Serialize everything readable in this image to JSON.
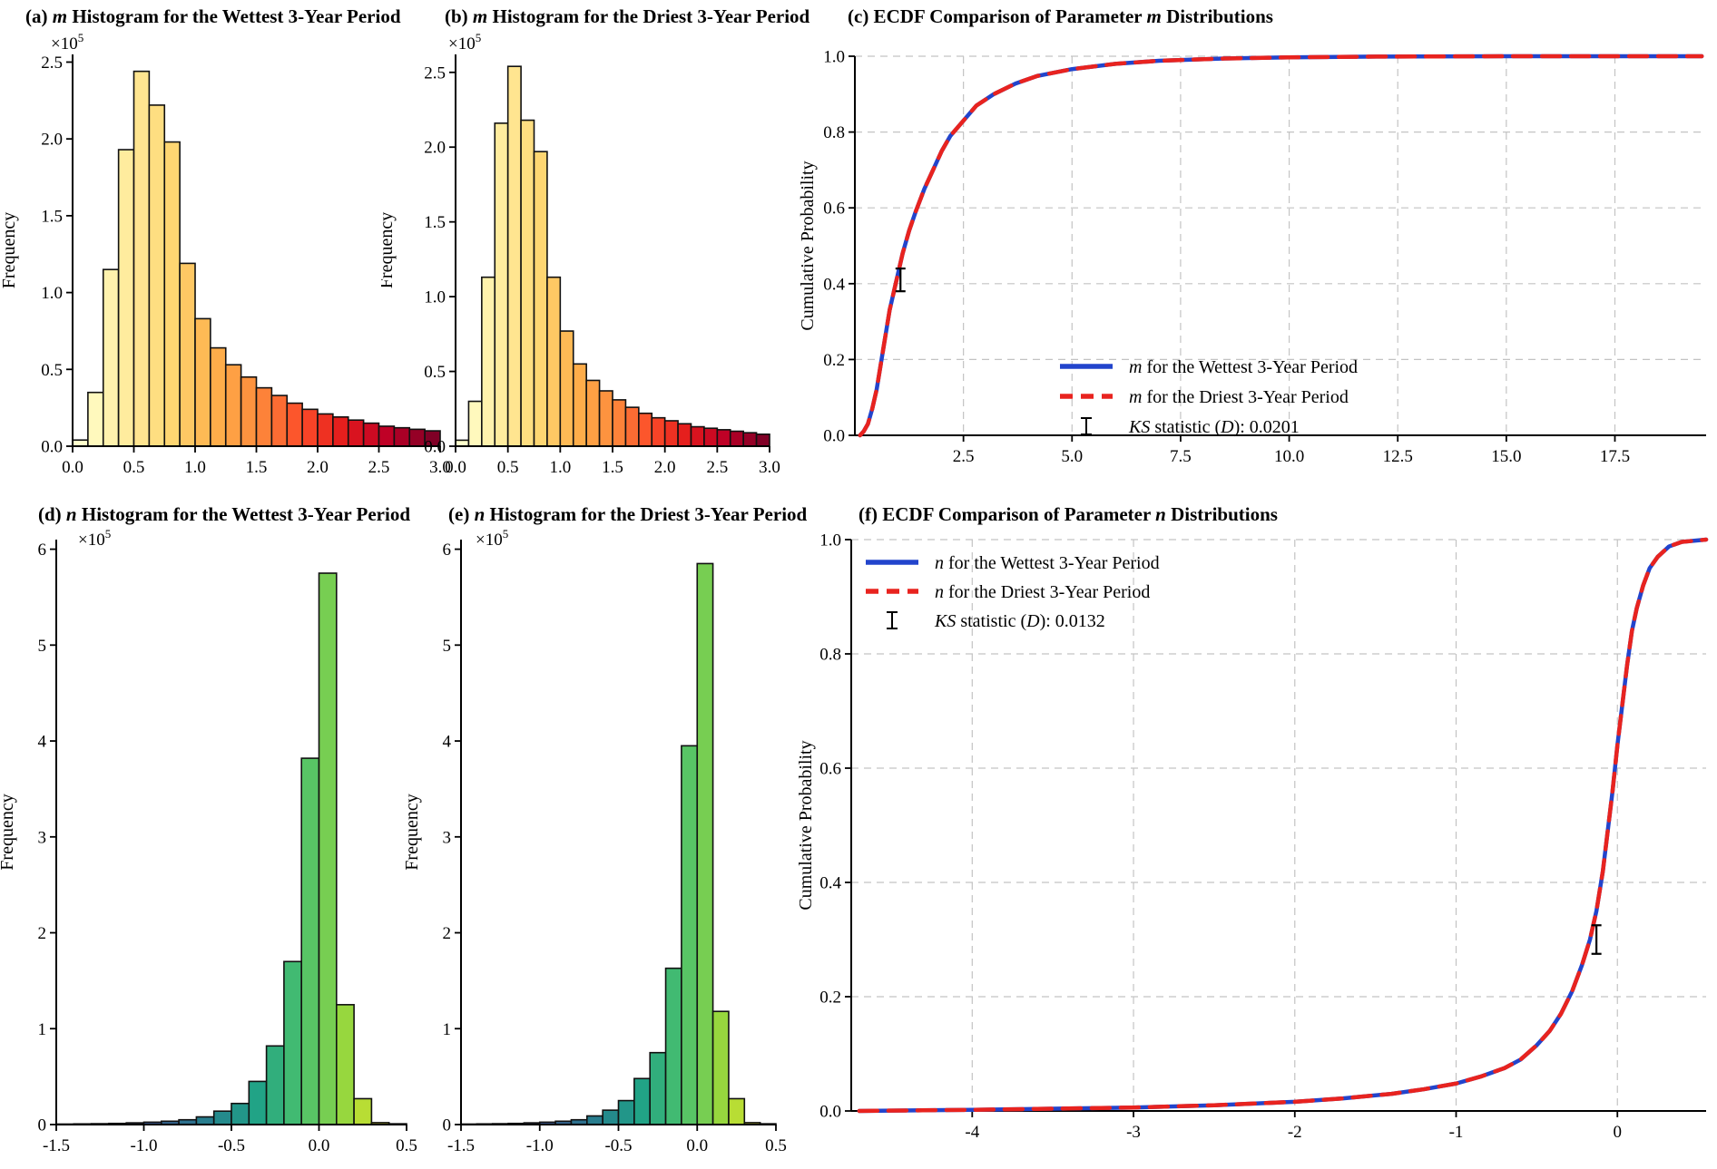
{
  "figure": {
    "background": "#ffffff"
  },
  "colors": {
    "wettest_line": "#2244cc",
    "driest_line": "#e8231f",
    "grid": "#c3c3c3",
    "bar_edge": "#111111",
    "axis": "#000000"
  },
  "chart_data": [
    {
      "id": "a",
      "type": "bar",
      "title": "(a) m Histogram for the Wettest 3-Year Period",
      "title_parts": {
        "pre": "(a)",
        "var": "m",
        "post": " Histogram for the Wettest 3-Year Period"
      },
      "xlabel": "",
      "ylabel": "Frequency",
      "y_offset": {
        "base": "×10",
        "exp": "5"
      },
      "bin_start": 0.0,
      "bin_width": 0.125,
      "values_x1e5": [
        0.04,
        0.35,
        1.15,
        1.93,
        2.44,
        2.22,
        1.98,
        1.19,
        0.83,
        0.64,
        0.53,
        0.45,
        0.38,
        0.33,
        0.28,
        0.24,
        0.21,
        0.19,
        0.17,
        0.15,
        0.13,
        0.12,
        0.11,
        0.1
      ],
      "xlim": [
        0.0,
        3.0
      ],
      "ylim": [
        0.0,
        2.55
      ],
      "xtick_vals": [
        0.0,
        0.5,
        1.0,
        1.5,
        2.0,
        2.5,
        3.0
      ],
      "xtick_labels": [
        "0.0",
        "0.5",
        "1.0",
        "1.5",
        "2.0",
        "2.5",
        "3.0"
      ],
      "ytick_vals": [
        0.0,
        0.5,
        1.0,
        1.5,
        2.0,
        2.5
      ],
      "ytick_labels": [
        "0.0",
        "0.5",
        "1.0",
        "1.5",
        "2.0",
        "2.5"
      ],
      "grid": false,
      "colormap": [
        "#ffffcc",
        "#ffeda0",
        "#fed976",
        "#feb24c",
        "#fd8d3c",
        "#fc4e2a",
        "#e31a1c",
        "#bd0026",
        "#800026"
      ]
    },
    {
      "id": "b",
      "type": "bar",
      "title": "(b) m Histogram for the Driest 3-Year Period",
      "title_parts": {
        "pre": "(b)",
        "var": "m",
        "post": " Histogram for the Driest 3-Year Period"
      },
      "xlabel": "",
      "ylabel": "Frequency",
      "y_offset": {
        "base": "×10",
        "exp": "5"
      },
      "bin_start": 0.0,
      "bin_width": 0.125,
      "values_x1e5": [
        0.04,
        0.3,
        1.13,
        2.16,
        2.54,
        2.18,
        1.97,
        1.13,
        0.77,
        0.55,
        0.44,
        0.37,
        0.31,
        0.26,
        0.22,
        0.19,
        0.17,
        0.15,
        0.13,
        0.12,
        0.11,
        0.1,
        0.09,
        0.08
      ],
      "xlim": [
        0.0,
        3.0
      ],
      "ylim": [
        0.0,
        2.62
      ],
      "xtick_vals": [
        0.0,
        0.5,
        1.0,
        1.5,
        2.0,
        2.5,
        3.0
      ],
      "xtick_labels": [
        "0.0",
        "0.5",
        "1.0",
        "1.5",
        "2.0",
        "2.5",
        "3.0"
      ],
      "ytick_vals": [
        0.0,
        0.5,
        1.0,
        1.5,
        2.0,
        2.5
      ],
      "ytick_labels": [
        "0.0",
        "0.5",
        "1.0",
        "1.5",
        "2.0",
        "2.5"
      ],
      "grid": false,
      "colormap": [
        "#ffffcc",
        "#ffeda0",
        "#fed976",
        "#feb24c",
        "#fd8d3c",
        "#fc4e2a",
        "#e31a1c",
        "#bd0026",
        "#800026"
      ]
    },
    {
      "id": "c",
      "type": "line",
      "title": "(c) ECDF Comparison of Parameter m Distributions",
      "title_parts": {
        "pre": "(c) ECDF Comparison of Parameter",
        "var": "m",
        "post": " Distributions"
      },
      "xlabel": "",
      "ylabel": "Cumulative Probability",
      "xlim": [
        0.0,
        19.6
      ],
      "ylim": [
        0.0,
        1.0
      ],
      "xtick_vals": [
        2.5,
        5.0,
        7.5,
        10.0,
        12.5,
        15.0,
        17.5
      ],
      "xtick_labels": [
        "2.5",
        "5.0",
        "7.5",
        "10.0",
        "12.5",
        "15.0",
        "17.5"
      ],
      "ytick_vals": [
        0.0,
        0.2,
        0.4,
        0.6,
        0.8,
        1.0
      ],
      "ytick_labels": [
        "0.0",
        "0.2",
        "0.4",
        "0.6",
        "0.8",
        "1.0"
      ],
      "grid": true,
      "legend_position": "lower right",
      "ks_statistic": 0.0201,
      "ks_marker": {
        "x": 1.05,
        "y": 0.41,
        "half": 0.03
      },
      "series": [
        {
          "name": "m for the Wettest 3-Year Period",
          "color": "#2244cc",
          "dash": false,
          "points": [
            [
              0.12,
              0.0
            ],
            [
              0.2,
              0.01
            ],
            [
              0.3,
              0.03
            ],
            [
              0.4,
              0.07
            ],
            [
              0.5,
              0.12
            ],
            [
              0.6,
              0.19
            ],
            [
              0.7,
              0.26
            ],
            [
              0.8,
              0.33
            ],
            [
              0.9,
              0.38
            ],
            [
              1.0,
              0.43
            ],
            [
              1.1,
              0.48
            ],
            [
              1.25,
              0.54
            ],
            [
              1.4,
              0.59
            ],
            [
              1.6,
              0.65
            ],
            [
              1.8,
              0.7
            ],
            [
              2.0,
              0.75
            ],
            [
              2.2,
              0.79
            ],
            [
              2.5,
              0.83
            ],
            [
              2.8,
              0.87
            ],
            [
              3.2,
              0.9
            ],
            [
              3.7,
              0.928
            ],
            [
              4.2,
              0.948
            ],
            [
              5.0,
              0.966
            ],
            [
              6.0,
              0.98
            ],
            [
              7.0,
              0.988
            ],
            [
              8.5,
              0.994
            ],
            [
              10.0,
              0.997
            ],
            [
              12.0,
              0.999
            ],
            [
              15.0,
              1.0
            ],
            [
              19.5,
              1.0
            ]
          ]
        },
        {
          "name": "m for the Driest 3-Year Period",
          "color": "#e8231f",
          "dash": true,
          "points": [
            [
              0.12,
              0.0
            ],
            [
              0.2,
              0.01
            ],
            [
              0.3,
              0.03
            ],
            [
              0.4,
              0.07
            ],
            [
              0.5,
              0.12
            ],
            [
              0.6,
              0.19
            ],
            [
              0.7,
              0.26
            ],
            [
              0.8,
              0.33
            ],
            [
              0.9,
              0.38
            ],
            [
              1.0,
              0.43
            ],
            [
              1.1,
              0.48
            ],
            [
              1.25,
              0.54
            ],
            [
              1.4,
              0.59
            ],
            [
              1.6,
              0.65
            ],
            [
              1.8,
              0.7
            ],
            [
              2.0,
              0.75
            ],
            [
              2.2,
              0.79
            ],
            [
              2.5,
              0.83
            ],
            [
              2.8,
              0.87
            ],
            [
              3.2,
              0.9
            ],
            [
              3.7,
              0.928
            ],
            [
              4.2,
              0.948
            ],
            [
              5.0,
              0.966
            ],
            [
              6.0,
              0.98
            ],
            [
              7.0,
              0.988
            ],
            [
              8.5,
              0.994
            ],
            [
              10.0,
              0.997
            ],
            [
              12.0,
              0.999
            ],
            [
              15.0,
              1.0
            ],
            [
              19.5,
              1.0
            ]
          ]
        }
      ],
      "legend": [
        {
          "kind": "line",
          "color": "#2244cc",
          "dash": false,
          "parts": [
            {
              "t": "m",
              "i": true
            },
            {
              "t": "  for the Wettest 3-Year Period",
              "i": false
            }
          ]
        },
        {
          "kind": "line",
          "color": "#e8231f",
          "dash": true,
          "parts": [
            {
              "t": "m",
              "i": true
            },
            {
              "t": "  for the Driest 3-Year Period",
              "i": false
            }
          ]
        },
        {
          "kind": "errorbar",
          "parts": [
            {
              "t": "KS",
              "i": true
            },
            {
              "t": " statistic (",
              "i": false
            },
            {
              "t": "D",
              "i": true
            },
            {
              "t": "): 0.0201",
              "i": false
            }
          ]
        }
      ]
    },
    {
      "id": "d",
      "type": "bar",
      "title": "(d) n Histogram for the Wettest 3-Year Period",
      "title_parts": {
        "pre": "(d)",
        "var": "n",
        "post": " Histogram for the Wettest 3-Year Period"
      },
      "xlabel": "",
      "ylabel": "Frequency",
      "y_offset": {
        "base": "×10",
        "exp": "5"
      },
      "bin_start": -1.5,
      "bin_width": 0.1,
      "values_x1e5": [
        0.005,
        0.007,
        0.009,
        0.012,
        0.018,
        0.025,
        0.035,
        0.05,
        0.08,
        0.14,
        0.22,
        0.45,
        0.82,
        1.7,
        3.82,
        5.75,
        1.25,
        0.27,
        0.02,
        0.008
      ],
      "xlim": [
        -1.5,
        0.5
      ],
      "ylim": [
        0.0,
        6.1
      ],
      "xtick_vals": [
        -1.5,
        -1.0,
        -0.5,
        0.0,
        0.5
      ],
      "xtick_labels": [
        "-1.5",
        "-1.0",
        "-0.5",
        "0.0",
        "0.5"
      ],
      "ytick_vals": [
        0,
        1,
        2,
        3,
        4,
        5,
        6
      ],
      "ytick_labels": [
        "0",
        "1",
        "2",
        "3",
        "4",
        "5",
        "6"
      ],
      "grid": false,
      "colormap": [
        "#440154",
        "#46327e",
        "#365c8d",
        "#277f8e",
        "#1fa187",
        "#4ac16d",
        "#a0da39",
        "#fde725"
      ]
    },
    {
      "id": "e",
      "type": "bar",
      "title": "(e) n Histogram for the Driest 3-Year Period",
      "title_parts": {
        "pre": "(e)",
        "var": "n",
        "post": " Histogram for the Driest 3-Year Period"
      },
      "xlabel": "",
      "ylabel": "Frequency",
      "y_offset": {
        "base": "×10",
        "exp": "5"
      },
      "bin_start": -1.5,
      "bin_width": 0.1,
      "values_x1e5": [
        0.005,
        0.007,
        0.009,
        0.012,
        0.018,
        0.025,
        0.035,
        0.05,
        0.09,
        0.15,
        0.25,
        0.48,
        0.75,
        1.63,
        3.95,
        5.85,
        1.18,
        0.27,
        0.02,
        0.008
      ],
      "xlim": [
        -1.5,
        0.5
      ],
      "ylim": [
        0.0,
        6.1
      ],
      "xtick_vals": [
        -1.5,
        -1.0,
        -0.5,
        0.0,
        0.5
      ],
      "xtick_labels": [
        "-1.5",
        "-1.0",
        "-0.5",
        "0.0",
        "0.5"
      ],
      "ytick_vals": [
        0,
        1,
        2,
        3,
        4,
        5,
        6
      ],
      "ytick_labels": [
        "0",
        "1",
        "2",
        "3",
        "4",
        "5",
        "6"
      ],
      "grid": false,
      "colormap": [
        "#440154",
        "#46327e",
        "#365c8d",
        "#277f8e",
        "#1fa187",
        "#4ac16d",
        "#a0da39",
        "#fde725"
      ]
    },
    {
      "id": "f",
      "type": "line",
      "title": "(f) ECDF Comparison of Parameter n Distributions",
      "title_parts": {
        "pre": "(f) ECDF Comparison of Parameter",
        "var": "n",
        "post": " Distributions"
      },
      "xlabel": "",
      "ylabel": "Cumulative Probability",
      "xlim": [
        -4.75,
        0.55
      ],
      "ylim": [
        0.0,
        1.0
      ],
      "xtick_vals": [
        -4,
        -3,
        -2,
        -1,
        0
      ],
      "xtick_labels": [
        "-4",
        "-3",
        "-2",
        "-1",
        "0"
      ],
      "ytick_vals": [
        0.0,
        0.2,
        0.4,
        0.6,
        0.8,
        1.0
      ],
      "ytick_labels": [
        "0.0",
        "0.2",
        "0.4",
        "0.6",
        "0.8",
        "1.0"
      ],
      "grid": true,
      "legend_position": "upper left",
      "ks_statistic": 0.0132,
      "ks_marker": {
        "x": -0.13,
        "y": 0.3,
        "half": 0.025
      },
      "series": [
        {
          "name": "n for the Wettest 3-Year Period",
          "color": "#2244cc",
          "dash": false,
          "points": [
            [
              -4.7,
              0.0
            ],
            [
              -4.0,
              0.002
            ],
            [
              -3.5,
              0.004
            ],
            [
              -3.0,
              0.006
            ],
            [
              -2.5,
              0.01
            ],
            [
              -2.0,
              0.016
            ],
            [
              -1.7,
              0.022
            ],
            [
              -1.4,
              0.03
            ],
            [
              -1.2,
              0.038
            ],
            [
              -1.0,
              0.048
            ],
            [
              -0.85,
              0.06
            ],
            [
              -0.7,
              0.075
            ],
            [
              -0.6,
              0.09
            ],
            [
              -0.5,
              0.115
            ],
            [
              -0.42,
              0.14
            ],
            [
              -0.35,
              0.17
            ],
            [
              -0.28,
              0.21
            ],
            [
              -0.22,
              0.255
            ],
            [
              -0.17,
              0.3
            ],
            [
              -0.13,
              0.35
            ],
            [
              -0.09,
              0.42
            ],
            [
              -0.06,
              0.49
            ],
            [
              -0.03,
              0.56
            ],
            [
              0.0,
              0.64
            ],
            [
              0.03,
              0.71
            ],
            [
              0.06,
              0.78
            ],
            [
              0.09,
              0.84
            ],
            [
              0.12,
              0.88
            ],
            [
              0.16,
              0.92
            ],
            [
              0.2,
              0.95
            ],
            [
              0.25,
              0.97
            ],
            [
              0.32,
              0.988
            ],
            [
              0.4,
              0.996
            ],
            [
              0.55,
              1.0
            ]
          ]
        },
        {
          "name": "n for the Driest 3-Year Period",
          "color": "#e8231f",
          "dash": true,
          "points": [
            [
              -4.7,
              0.0
            ],
            [
              -4.0,
              0.002
            ],
            [
              -3.5,
              0.004
            ],
            [
              -3.0,
              0.006
            ],
            [
              -2.5,
              0.01
            ],
            [
              -2.0,
              0.016
            ],
            [
              -1.7,
              0.022
            ],
            [
              -1.4,
              0.03
            ],
            [
              -1.2,
              0.038
            ],
            [
              -1.0,
              0.048
            ],
            [
              -0.85,
              0.06
            ],
            [
              -0.7,
              0.075
            ],
            [
              -0.6,
              0.09
            ],
            [
              -0.5,
              0.115
            ],
            [
              -0.42,
              0.14
            ],
            [
              -0.35,
              0.17
            ],
            [
              -0.28,
              0.21
            ],
            [
              -0.22,
              0.255
            ],
            [
              -0.17,
              0.3
            ],
            [
              -0.13,
              0.35
            ],
            [
              -0.09,
              0.42
            ],
            [
              -0.06,
              0.49
            ],
            [
              -0.03,
              0.56
            ],
            [
              0.0,
              0.64
            ],
            [
              0.03,
              0.71
            ],
            [
              0.06,
              0.78
            ],
            [
              0.09,
              0.84
            ],
            [
              0.12,
              0.88
            ],
            [
              0.16,
              0.92
            ],
            [
              0.2,
              0.95
            ],
            [
              0.25,
              0.97
            ],
            [
              0.32,
              0.988
            ],
            [
              0.4,
              0.996
            ],
            [
              0.55,
              1.0
            ]
          ]
        }
      ],
      "legend": [
        {
          "kind": "line",
          "color": "#2244cc",
          "dash": false,
          "parts": [
            {
              "t": "n",
              "i": true
            },
            {
              "t": "  for the Wettest 3-Year Period",
              "i": false
            }
          ]
        },
        {
          "kind": "line",
          "color": "#e8231f",
          "dash": true,
          "parts": [
            {
              "t": "n",
              "i": true
            },
            {
              "t": "  for the Driest 3-Year Period",
              "i": false
            }
          ]
        },
        {
          "kind": "errorbar",
          "parts": [
            {
              "t": "KS",
              "i": true
            },
            {
              "t": " statistic (",
              "i": false
            },
            {
              "t": "D",
              "i": true
            },
            {
              "t": "): 0.0132",
              "i": false
            }
          ]
        }
      ]
    }
  ]
}
